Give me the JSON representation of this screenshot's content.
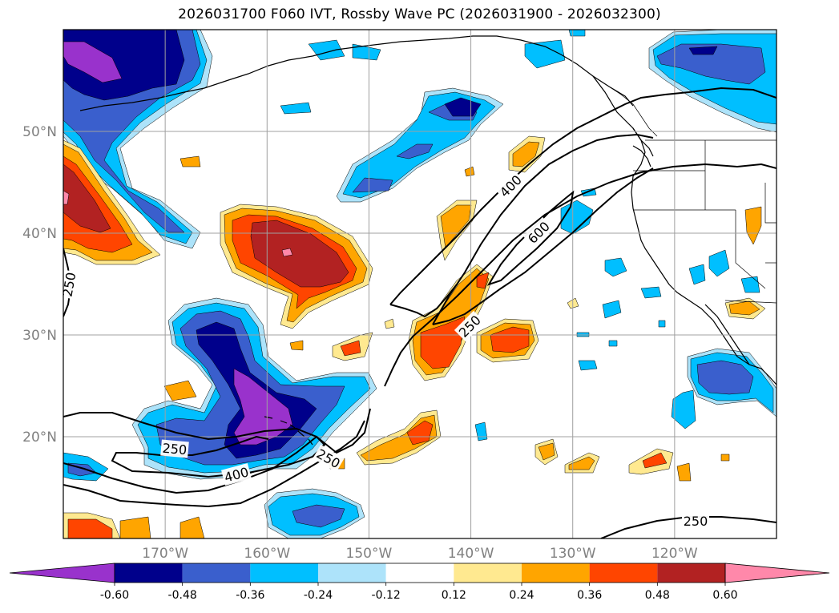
{
  "title": "2026031700 F060 IVT, Rossby Wave PC (2026031900 - 2026032300)",
  "map": {
    "projection": "PlateCarree",
    "lon_range": [
      -180,
      -110
    ],
    "lat_range": [
      10,
      60
    ],
    "lat_ticks": [
      {
        "value": 50,
        "label": "50°N"
      },
      {
        "value": 40,
        "label": "40°N"
      },
      {
        "value": 30,
        "label": "30°N"
      },
      {
        "value": 20,
        "label": "20°N"
      }
    ],
    "lon_ticks": [
      {
        "value": -170,
        "label": "170°W"
      },
      {
        "value": -160,
        "label": "160°W"
      },
      {
        "value": -150,
        "label": "150°W"
      },
      {
        "value": -140,
        "label": "140°W"
      },
      {
        "value": -130,
        "label": "130°W"
      },
      {
        "value": -120,
        "label": "120°W"
      }
    ],
    "gridlines": true,
    "ivt_contour_labels": [
      "250",
      "400",
      "600",
      "250",
      "250",
      "400",
      "250",
      "250"
    ]
  },
  "colorbar": {
    "levels": [
      "-0.60",
      "-0.48",
      "-0.36",
      "-0.24",
      "-0.12",
      "0.12",
      "0.24",
      "0.36",
      "0.48",
      "0.60"
    ],
    "colors": [
      "#9932CC",
      "#00008B",
      "#3A5FCD",
      "#00BFFF",
      "#ADE3FA",
      "#FFFFFF",
      "#FFE990",
      "#FFA500",
      "#FF4500",
      "#B22222",
      "#FF88AA"
    ],
    "extend": "both"
  }
}
